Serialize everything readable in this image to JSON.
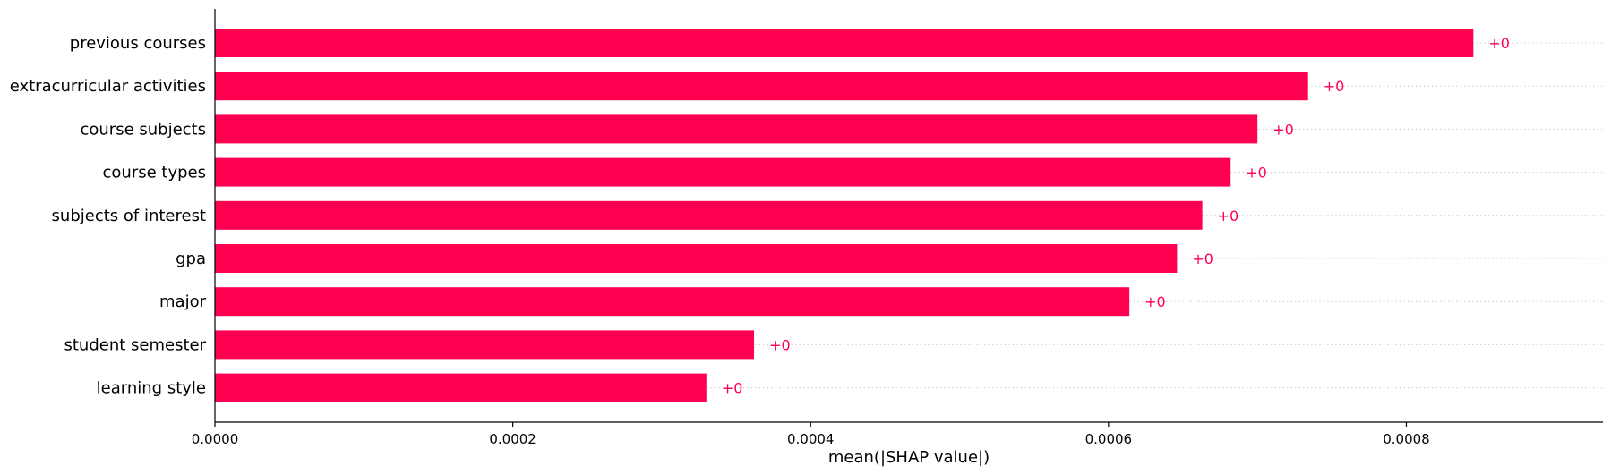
{
  "chart_data": {
    "type": "bar",
    "orientation": "horizontal",
    "categories": [
      "previous courses",
      "extracurricular activities",
      "course subjects",
      "course types",
      "subjects of interest",
      "gpa",
      "major",
      "student semester",
      "learning style"
    ],
    "values": [
      0.000845,
      0.000734,
      0.0007,
      0.000682,
      0.000663,
      0.000646,
      0.000614,
      0.000362,
      0.00033
    ],
    "value_labels": [
      "+0",
      "+0",
      "+0",
      "+0",
      "+0",
      "+0",
      "+0",
      "+0",
      "+0"
    ],
    "xlabel": "mean(|SHAP value|)",
    "ylabel": "",
    "xlim": [
      0,
      0.000932
    ],
    "xticks": [
      0,
      0.0002,
      0.0004,
      0.0006,
      0.0008
    ],
    "xtick_labels": [
      "0.0000",
      "0.0002",
      "0.0004",
      "0.0006",
      "0.0008"
    ],
    "grid": "dotted horizontal guide lines per row",
    "bar_color": "#ff0051",
    "label_color": "#ff0051"
  }
}
